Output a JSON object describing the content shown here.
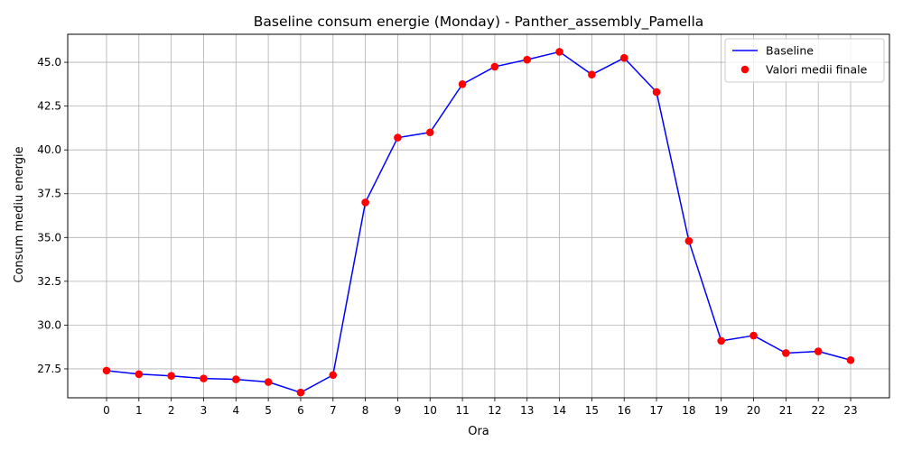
{
  "chart_data": {
    "type": "line",
    "title": "Baseline consum energie (Monday) - Panther_assembly_Pamella",
    "xlabel": "Ora",
    "ylabel": "Consum mediu energie",
    "x": [
      0,
      1,
      2,
      3,
      4,
      5,
      6,
      7,
      8,
      9,
      10,
      11,
      12,
      13,
      14,
      15,
      16,
      17,
      18,
      19,
      20,
      21,
      22,
      23
    ],
    "x_tick_labels": [
      "0",
      "1",
      "2",
      "3",
      "4",
      "5",
      "6",
      "7",
      "8",
      "9",
      "10",
      "11",
      "12",
      "13",
      "14",
      "15",
      "16",
      "17",
      "18",
      "19",
      "20",
      "21",
      "22",
      "23"
    ],
    "y_ticks": [
      27.5,
      30.0,
      32.5,
      35.0,
      37.5,
      40.0,
      42.5,
      45.0
    ],
    "y_tick_labels": [
      "27.5",
      "30.0",
      "32.5",
      "35.0",
      "37.5",
      "40.0",
      "42.5",
      "45.0"
    ],
    "xlim": [
      -1.2,
      24.2
    ],
    "ylim": [
      25.85,
      46.6
    ],
    "grid": true,
    "legend_position": "upper right",
    "series": [
      {
        "name": "Baseline",
        "kind": "line",
        "color": "#0000ff",
        "values": [
          27.4,
          27.2,
          27.1,
          26.95,
          26.9,
          26.75,
          26.15,
          27.15,
          37.0,
          40.7,
          41.0,
          43.75,
          44.75,
          45.15,
          45.6,
          44.3,
          45.25,
          43.3,
          34.8,
          29.1,
          29.4,
          28.4,
          28.5,
          28.0
        ]
      },
      {
        "name": "Valori medii finale",
        "kind": "scatter",
        "color": "#ff0000",
        "values": [
          27.4,
          27.2,
          27.1,
          26.95,
          26.9,
          26.75,
          26.15,
          27.15,
          37.0,
          40.7,
          41.0,
          43.75,
          44.75,
          45.15,
          45.6,
          44.3,
          45.25,
          43.3,
          34.8,
          29.1,
          29.4,
          28.4,
          28.5,
          28.0
        ]
      }
    ]
  }
}
